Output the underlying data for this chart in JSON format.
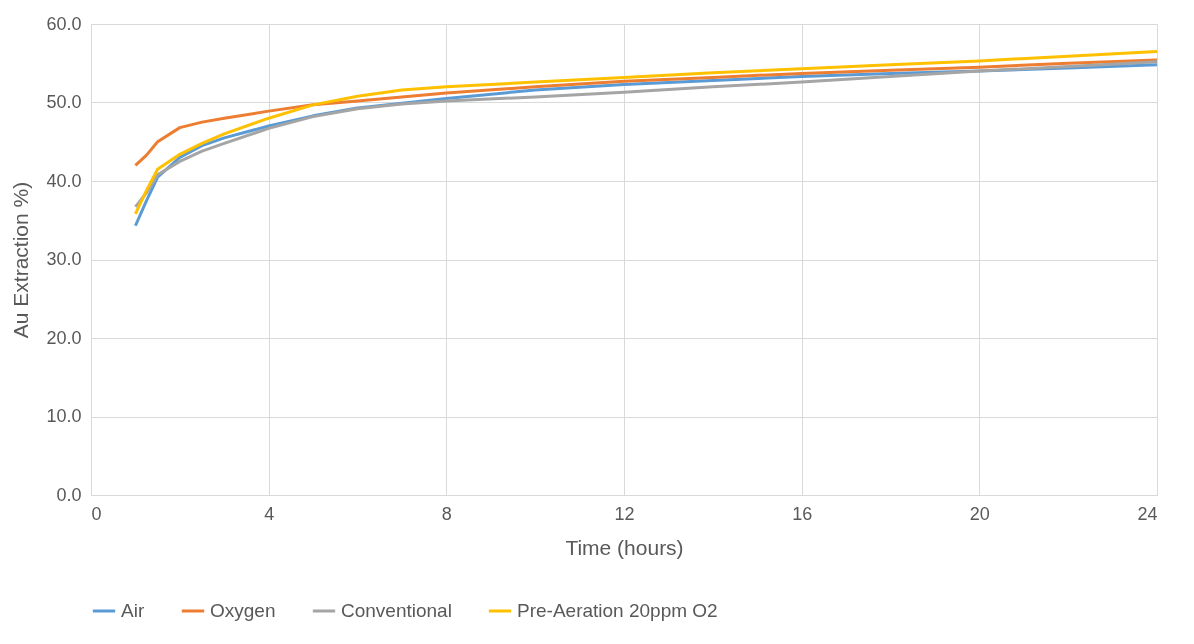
{
  "chart_data": {
    "type": "line",
    "xlabel": "Time (hours)",
    "ylabel": "Au Extraction %)",
    "x": [
      1,
      1.25,
      1.5,
      2,
      2.5,
      3,
      4,
      5,
      6,
      7,
      8,
      10,
      12,
      14,
      16,
      18,
      20,
      22,
      24
    ],
    "series": [
      {
        "name": "Air",
        "color": "#5b9bd5",
        "values": [
          34.3,
          37.5,
          40.5,
          43,
          44.5,
          45.5,
          47,
          48.3,
          49.3,
          49.9,
          50.5,
          51.6,
          52.3,
          52.8,
          53.3,
          53.7,
          54.0,
          54.4,
          54.8
        ]
      },
      {
        "name": "Oxygen",
        "color": "#ed7d31",
        "values": [
          42,
          43.3,
          45,
          46.8,
          47.5,
          48,
          48.9,
          49.7,
          50.2,
          50.7,
          51.2,
          52.0,
          52.7,
          53.2,
          53.7,
          54.1,
          54.5,
          55.0,
          55.4
        ]
      },
      {
        "name": "Conventional",
        "color": "#a5a5a5",
        "values": [
          36.7,
          38.5,
          40.8,
          42.5,
          43.8,
          44.8,
          46.7,
          48.2,
          49.2,
          49.8,
          50.2,
          50.7,
          51.3,
          52.0,
          52.6,
          53.3,
          54.0,
          54.6,
          55.2
        ]
      },
      {
        "name": "Pre-Aeration 20ppm O2",
        "color": "#ffc000",
        "values": [
          35.8,
          38.8,
          41.5,
          43.4,
          44.8,
          46,
          48,
          49.7,
          50.8,
          51.6,
          52.0,
          52.6,
          53.2,
          53.8,
          54.3,
          54.8,
          55.3,
          55.9,
          56.5
        ]
      }
    ],
    "xlim": [
      0,
      24
    ],
    "xticks": [
      0,
      4,
      8,
      12,
      16,
      20,
      24
    ],
    "ylim": [
      0,
      60
    ],
    "yticks": [
      {
        "value": 0,
        "label": "0.0"
      },
      {
        "value": 10,
        "label": "10.0"
      },
      {
        "value": 20,
        "label": "20.0"
      },
      {
        "value": 30,
        "label": "30.0"
      },
      {
        "value": 40,
        "label": "40.0"
      },
      {
        "value": 50,
        "label": "50.0"
      },
      {
        "value": 60,
        "label": "60.0"
      }
    ],
    "grid": true,
    "legend": "bottom",
    "marker": "none",
    "line_style": "solid"
  }
}
